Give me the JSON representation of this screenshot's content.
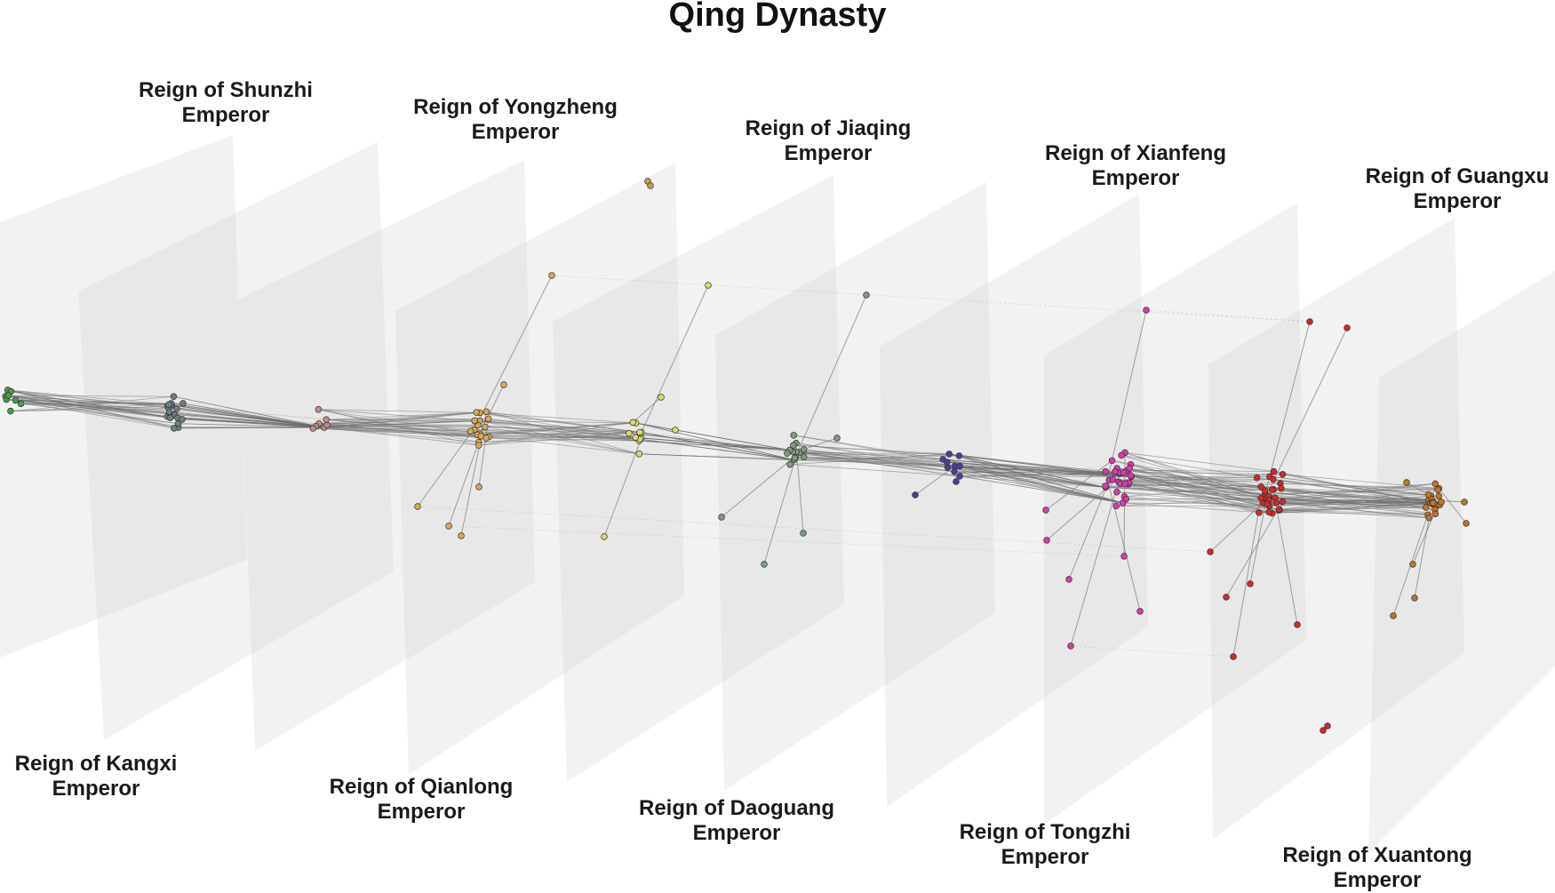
{
  "title": "Qing Dynasty",
  "reigns": [
    {
      "name": "Reign of Shunzhi",
      "suffix": "Emperor",
      "color": "#4a9a4a"
    },
    {
      "name": "Reign of Kangxi",
      "suffix": "Emperor",
      "color": "#6f7f7f"
    },
    {
      "name": "Reign of Yongzheng",
      "suffix": "Emperor",
      "color": "#c08a8a"
    },
    {
      "name": "Reign of Qianlong",
      "suffix": "Emperor",
      "color": "#d9a85a"
    },
    {
      "name": "Reign of Jiaqing",
      "suffix": "Emperor",
      "color": "#dcd870"
    },
    {
      "name": "Reign of Daoguang",
      "suffix": "Emperor",
      "color": "#7f9a7f"
    },
    {
      "name": "Reign of Xianfeng",
      "suffix": "Emperor",
      "color": "#4a3f9a"
    },
    {
      "name": "Reign of Tongzhi",
      "suffix": "Emperor",
      "color": "#d93ab0"
    },
    {
      "name": "Reign of Guangxu",
      "suffix": "Emperor",
      "color": "#d02a2a"
    },
    {
      "name": "Reign of Xuantong",
      "suffix": "Emperor",
      "color": "#c0752a"
    }
  ]
}
